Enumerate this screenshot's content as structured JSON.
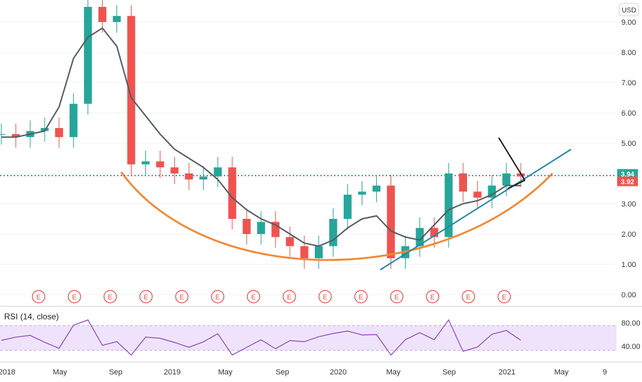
{
  "chart_data": [
    {
      "type": "candlestick",
      "currency_label": "USD",
      "y_ticks": [
        "9.00",
        "8.00",
        "7.00",
        "6.00",
        "5.00",
        "4.00",
        "3.00",
        "2.00",
        "1.00",
        "0.00"
      ],
      "ylim": [
        0,
        9.5
      ],
      "x_ticks": [
        "2018",
        "May",
        "Sep",
        "2019",
        "May",
        "Sep",
        "2020",
        "May",
        "Sep",
        "2021",
        "May",
        "9"
      ],
      "price_badges": [
        {
          "label": "3.94",
          "value": 3.94,
          "color": "#26a69a"
        },
        {
          "label": "3.92",
          "value": 3.92,
          "color": "#ef5350"
        }
      ],
      "earnings_markers": [
        "E",
        "E",
        "E",
        "E",
        "E",
        "E",
        "E",
        "E",
        "E",
        "E",
        "E",
        "E",
        "E",
        "E"
      ],
      "price_series_approx": {
        "x": [
          "2018-01",
          "2018-02",
          "2018-03",
          "2018-04",
          "2018-05",
          "2018-06",
          "2018-07",
          "2018-08",
          "2018-09",
          "2018-10",
          "2018-11",
          "2018-12",
          "2019-01",
          "2019-02",
          "2019-03",
          "2019-04",
          "2019-05",
          "2019-06",
          "2019-07",
          "2019-08",
          "2019-09",
          "2019-10",
          "2019-11",
          "2019-12",
          "2020-01",
          "2020-02",
          "2020-03",
          "2020-04",
          "2020-05",
          "2020-06",
          "2020-07",
          "2020-08",
          "2020-09",
          "2020-10",
          "2020-11",
          "2020-12",
          "2021-01"
        ],
        "close": [
          5.3,
          5.2,
          5.4,
          5.5,
          5.2,
          6.3,
          9.5,
          9.0,
          9.2,
          4.3,
          4.4,
          4.2,
          4.0,
          3.8,
          3.9,
          4.2,
          2.5,
          2.0,
          2.4,
          1.9,
          1.6,
          1.2,
          1.6,
          2.5,
          3.3,
          3.4,
          3.6,
          1.2,
          1.6,
          2.2,
          1.9,
          4.0,
          3.4,
          3.2,
          3.6,
          4.0,
          3.9
        ]
      },
      "moving_average_approx": [
        5.2,
        5.2,
        5.3,
        5.4,
        6.2,
        7.8,
        8.5,
        8.8,
        8.2,
        6.5,
        5.9,
        5.3,
        4.8,
        4.5,
        4.2,
        3.8,
        3.2,
        2.8,
        2.5,
        2.3,
        2.0,
        1.7,
        1.6,
        1.8,
        2.2,
        2.5,
        2.6,
        2.1,
        1.9,
        1.8,
        2.3,
        2.8,
        3.0,
        3.1,
        3.3,
        3.6,
        3.6
      ],
      "annotations": {
        "cup_curve": "orange rounded-bottom arc",
        "support_trendline": "rising trendline",
        "pennant": "short converging lines near the right end"
      }
    },
    {
      "type": "line",
      "title": "RSI (14, close)",
      "y_ticks": [
        "80.00",
        "40.00"
      ],
      "band": [
        30,
        70
      ],
      "ylim": [
        20,
        100
      ]
    }
  ]
}
